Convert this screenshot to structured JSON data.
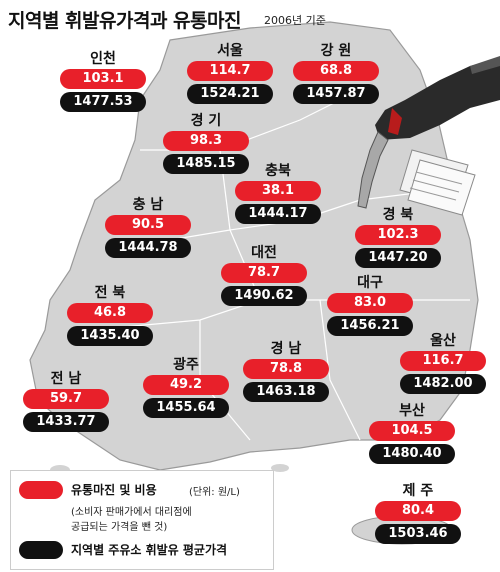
{
  "title": "지역별 휘발유가격과 유통마진",
  "subtitle": "2006년 기준",
  "colors": {
    "margin": "#e8202a",
    "price": "#111111",
    "land": "#d3d3d3",
    "coast": "#9a9a9a"
  },
  "regions": [
    {
      "id": "incheon",
      "name": "인천",
      "margin": "103.1",
      "price": "1477.53"
    },
    {
      "id": "seoul",
      "name": "서울",
      "margin": "114.7",
      "price": "1524.21"
    },
    {
      "id": "gangwon",
      "name": "강 원",
      "margin": "68.8",
      "price": "1457.87"
    },
    {
      "id": "gyeonggi",
      "name": "경 기",
      "margin": "98.3",
      "price": "1485.15"
    },
    {
      "id": "chungbuk",
      "name": "충북",
      "margin": "38.1",
      "price": "1444.17"
    },
    {
      "id": "chungnam",
      "name": "충 남",
      "margin": "90.5",
      "price": "1444.78"
    },
    {
      "id": "gyeongbuk",
      "name": "경 북",
      "margin": "102.3",
      "price": "1447.20"
    },
    {
      "id": "daejeon",
      "name": "대전",
      "margin": "78.7",
      "price": "1490.62"
    },
    {
      "id": "jeonbuk",
      "name": "전 북",
      "margin": "46.8",
      "price": "1435.40"
    },
    {
      "id": "daegu",
      "name": "대구",
      "margin": "83.0",
      "price": "1456.21"
    },
    {
      "id": "ulsan",
      "name": "울산",
      "margin": "116.7",
      "price": "1482.00"
    },
    {
      "id": "gwangju",
      "name": "광주",
      "margin": "49.2",
      "price": "1455.64"
    },
    {
      "id": "gyeongnam",
      "name": "경 남",
      "margin": "78.8",
      "price": "1463.18"
    },
    {
      "id": "jeonnam",
      "name": "전 남",
      "margin": "59.7",
      "price": "1433.77"
    },
    {
      "id": "busan",
      "name": "부산",
      "margin": "104.5",
      "price": "1480.40"
    },
    {
      "id": "jeju",
      "name": "제 주",
      "margin": "80.4",
      "price": "1503.46"
    }
  ],
  "legend": {
    "margin_label": "유통마진 및 비용",
    "unit": "(단위: 원/L)",
    "note_line1": "(소비자 판매가에서 대리점에",
    "note_line2": "공급되는 가격을 뺀 것)",
    "price_label": "지역별 주유소 휘발유  평균가격"
  },
  "icons": {
    "nozzle": "fuel-nozzle-icon",
    "receipts": "receipts-icon"
  }
}
